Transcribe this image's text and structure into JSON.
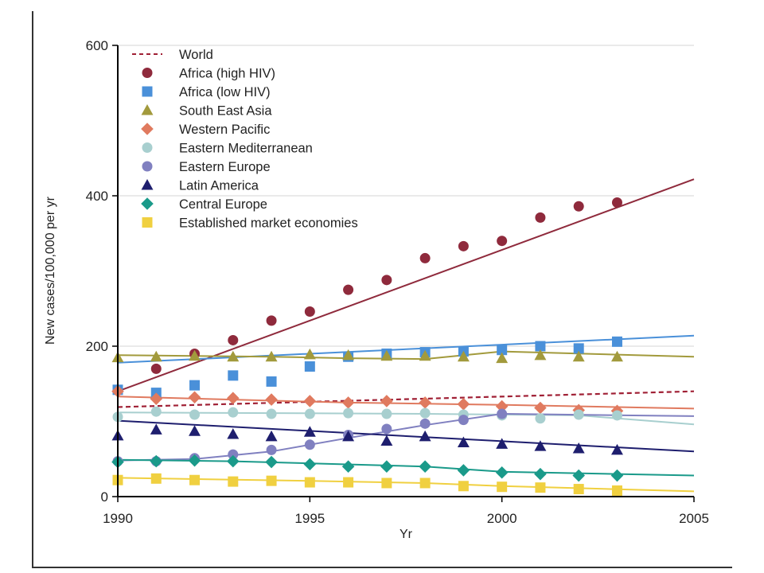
{
  "chart_data": {
    "type": "scatter",
    "title": "",
    "xlabel": "Yr",
    "ylabel": "New cases/100,000 per yr",
    "xlim": [
      1990,
      2005
    ],
    "ylim": [
      0,
      600
    ],
    "xticks": [
      1990,
      1995,
      2000,
      2005
    ],
    "yticks": [
      0,
      200,
      400,
      600
    ],
    "grid": "horizontal",
    "legend_position": "top-left",
    "series": [
      {
        "name": "World",
        "style": "dashed-line",
        "marker": "none",
        "color": "#a02035",
        "fit": [
          [
            1990,
            119
          ],
          [
            2005,
            140
          ]
        ],
        "x": [],
        "values": []
      },
      {
        "name": "Africa (high HIV)",
        "marker": "circle",
        "color": "#8f2a3c",
        "fit": [
          [
            1990,
            140
          ],
          [
            2005,
            422
          ]
        ],
        "x": [
          1990,
          1991,
          1992,
          1993,
          1994,
          1995,
          1996,
          1997,
          1998,
          1999,
          2000,
          2001,
          2002,
          2003
        ],
        "values": [
          142,
          170,
          190,
          208,
          234,
          246,
          275,
          288,
          317,
          333,
          340,
          371,
          386,
          391
        ]
      },
      {
        "name": "Africa (low HIV)",
        "marker": "square",
        "color": "#4a90d9",
        "fit": [
          [
            1990,
            178
          ],
          [
            2005,
            214
          ]
        ],
        "x": [
          1990,
          1991,
          1992,
          1993,
          1994,
          1995,
          1996,
          1997,
          1998,
          1999,
          2000,
          2001,
          2002,
          2003
        ],
        "values": [
          142,
          138,
          148,
          161,
          153,
          173,
          186,
          190,
          192,
          193,
          195,
          200,
          197,
          206
        ]
      },
      {
        "name": "South East Asia",
        "marker": "triangle",
        "color": "#a29a3c",
        "fit": [
          [
            1990,
            188
          ],
          [
            1992,
            187
          ],
          [
            1994,
            186
          ],
          [
            1996,
            184
          ],
          [
            1998,
            183
          ],
          [
            2000,
            193
          ],
          [
            2005,
            186
          ]
        ],
        "x": [
          1990,
          1991,
          1992,
          1993,
          1994,
          1995,
          1996,
          1997,
          1998,
          1999,
          2000,
          2001,
          2002,
          2003
        ],
        "values": [
          185,
          186,
          187,
          186,
          186,
          189,
          188,
          187,
          187,
          186,
          184,
          188,
          186,
          186
        ]
      },
      {
        "name": "Western Pacific",
        "marker": "diamond",
        "color": "#e07a5f",
        "fit": [
          [
            1990,
            133
          ],
          [
            1996,
            125
          ],
          [
            2000,
            122
          ],
          [
            2005,
            117
          ]
        ],
        "x": [
          1990,
          1991,
          1992,
          1993,
          1994,
          1995,
          1996,
          1997,
          1998,
          1999,
          2000,
          2001,
          2002,
          2003
        ],
        "values": [
          140,
          130,
          132,
          131,
          129,
          127,
          125,
          127,
          125,
          123,
          120,
          118,
          115,
          114
        ]
      },
      {
        "name": "Eastern Mediterranean",
        "marker": "circle",
        "color": "#a8cfcf",
        "fit": [
          [
            1990,
            112
          ],
          [
            1998,
            110
          ],
          [
            2002,
            108
          ],
          [
            2005,
            96
          ]
        ],
        "x": [
          1990,
          1991,
          1992,
          1993,
          1994,
          1995,
          1996,
          1997,
          1998,
          1999,
          2000,
          2001,
          2002,
          2003
        ],
        "values": [
          106,
          113,
          109,
          112,
          110,
          110,
          111,
          110,
          111,
          109,
          108,
          104,
          109,
          108
        ]
      },
      {
        "name": "Eastern Europe",
        "marker": "circle",
        "color": "#8080c0",
        "fit": [
          [
            1990,
            48
          ],
          [
            1992,
            50
          ],
          [
            1994,
            60
          ],
          [
            1996,
            78
          ],
          [
            1998,
            95
          ],
          [
            2000,
            110
          ],
          [
            2005,
            107
          ]
        ],
        "x": [
          1990,
          1991,
          1992,
          1993,
          1994,
          1995,
          1996,
          1997,
          1998,
          1999,
          2000
        ],
        "values": [
          47,
          47,
          51,
          56,
          62,
          69,
          82,
          90,
          97,
          102,
          110
        ]
      },
      {
        "name": "Latin America",
        "marker": "triangle",
        "color": "#1e1e6e",
        "fit": [
          [
            1990,
            101
          ],
          [
            2005,
            60
          ]
        ],
        "x": [
          1990,
          1991,
          1992,
          1993,
          1994,
          1995,
          1996,
          1997,
          1998,
          1999,
          2000,
          2001,
          2002,
          2003
        ],
        "values": [
          81,
          89,
          87,
          83,
          80,
          86,
          80,
          74,
          80,
          72,
          70,
          67,
          64,
          62
        ]
      },
      {
        "name": "Central Europe",
        "marker": "diamond",
        "color": "#1a9a8a",
        "fit": [
          [
            1990,
            49
          ],
          [
            1993,
            47
          ],
          [
            1998,
            40
          ],
          [
            2000,
            33
          ],
          [
            2005,
            28
          ]
        ],
        "x": [
          1990,
          1991,
          1992,
          1993,
          1994,
          1995,
          1996,
          1997,
          1998,
          1999,
          2000,
          2001,
          2002,
          2003
        ],
        "values": [
          46,
          47,
          48,
          47,
          46,
          43,
          40,
          40,
          40,
          35,
          32,
          30,
          28,
          28
        ]
      },
      {
        "name": "Established market economies",
        "marker": "square",
        "color": "#f0d040",
        "fit": [
          [
            1990,
            25
          ],
          [
            1995,
            21
          ],
          [
            1998,
            18
          ],
          [
            2000,
            14
          ],
          [
            2005,
            7
          ]
        ],
        "x": [
          1990,
          1991,
          1992,
          1993,
          1994,
          1995,
          1996,
          1997,
          1998,
          1999,
          2000,
          2001,
          2002,
          2003
        ],
        "values": [
          22,
          24,
          22,
          20,
          21,
          19,
          19,
          18,
          18,
          14,
          13,
          12,
          10,
          8
        ]
      }
    ]
  }
}
